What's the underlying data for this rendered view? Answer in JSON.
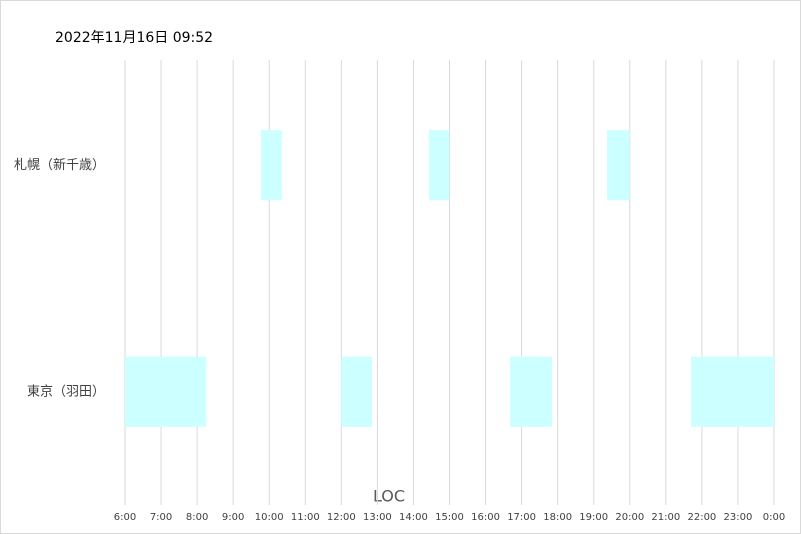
{
  "chart_data": {
    "type": "gantt",
    "title": "2022年11月16日 09:52",
    "x_label": "LOC",
    "categories": [
      "札幌（新千歳）",
      "東京（羽田）"
    ],
    "ranges": [
      [
        [
          9.77,
          10.35
        ],
        [
          14.43,
          15.0
        ],
        [
          19.37,
          20.0
        ]
      ],
      [
        [
          6.0,
          8.25
        ],
        [
          12.0,
          12.85
        ],
        [
          16.68,
          17.84
        ],
        [
          21.7,
          24.0
        ]
      ]
    ],
    "color": "#ccffff",
    "xlim": [
      6,
      24
    ],
    "xticks": [
      {
        "value": 6,
        "label": "6:00"
      },
      {
        "value": 7,
        "label": "7:00"
      },
      {
        "value": 8,
        "label": "8:00"
      },
      {
        "value": 9,
        "label": "9:00"
      },
      {
        "value": 10,
        "label": "10:00"
      },
      {
        "value": 11,
        "label": "11:00"
      },
      {
        "value": 12,
        "label": "12:00"
      },
      {
        "value": 13,
        "label": "13:00"
      },
      {
        "value": 14,
        "label": "14:00"
      },
      {
        "value": 15,
        "label": "15:00"
      },
      {
        "value": 16,
        "label": "16:00"
      },
      {
        "value": 17,
        "label": "17:00"
      },
      {
        "value": 18,
        "label": "18:00"
      },
      {
        "value": 19,
        "label": "19:00"
      },
      {
        "value": 20,
        "label": "20:00"
      },
      {
        "value": 21,
        "label": "21:00"
      },
      {
        "value": 22,
        "label": "22:00"
      },
      {
        "value": 23,
        "label": "23:00"
      },
      {
        "value": 24,
        "label": "0:00"
      }
    ],
    "grid": true
  }
}
